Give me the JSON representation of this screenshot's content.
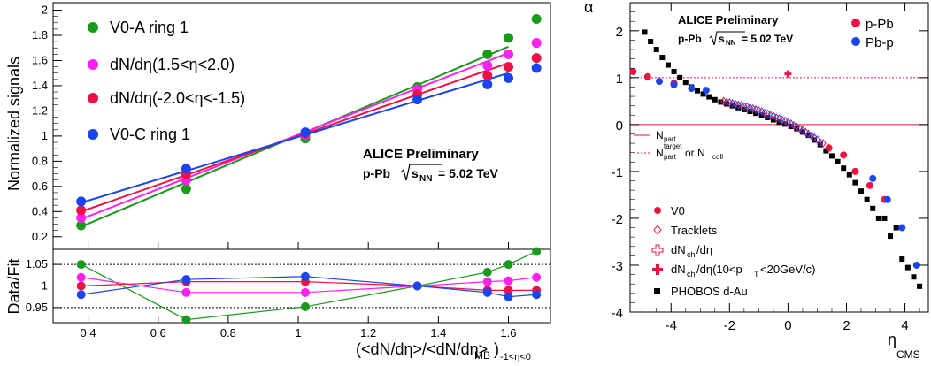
{
  "colors": {
    "green": "#1a9a1a",
    "magenta": "#ff22ee",
    "red": "#ee1144",
    "blue": "#1a44ee",
    "black": "#000000"
  },
  "chart_data": [
    {
      "type": "line",
      "x": [
        0.38,
        0.68,
        1.02,
        1.34,
        1.54,
        1.6,
        1.68
      ],
      "x_fit": [
        0.38,
        1.6
      ],
      "xlim": [
        0.3,
        1.72
      ],
      "xticks": [
        "0.4",
        "0.6",
        "0.8",
        "1",
        "1.2",
        "1.4",
        "1.6"
      ],
      "ylim": [
        0.1,
        2.06
      ],
      "yticks": [
        "0.2",
        "0.4",
        "0.6",
        "0.8",
        "1",
        "1.2",
        "1.4",
        "1.6",
        "1.8",
        "2"
      ],
      "ylabel": "Normalized signals",
      "xlabel_main": "(<dN/dη>/<dN/dη>",
      "xlabel_sub": "MB",
      "xlabel_sub2": ")",
      "xlabel_sub3": "-1<η<0",
      "annotation_title": "ALICE Preliminary",
      "annotation_system_prefix": "p-Pb",
      "annotation_sqrt_s": "s",
      "annotation_sqrt_sub": "NN",
      "annotation_energy": "= 5.02 TeV",
      "series": [
        {
          "name": "V0-A ring 1",
          "color": "green",
          "values": [
            0.29,
            0.58,
            0.98,
            1.39,
            1.65,
            1.78,
            1.93
          ],
          "fit": [
            0.28,
            1.71
          ]
        },
        {
          "name": "dN/dη(1.5<η<2.0)",
          "color": "magenta",
          "values": [
            0.35,
            0.65,
            1.01,
            1.37,
            1.56,
            1.65,
            1.74
          ],
          "fit": [
            0.34,
            1.66
          ]
        },
        {
          "name": "dN/dη(-2.0<η<-1.5)",
          "color": "red",
          "values": [
            0.41,
            0.7,
            1.02,
            1.33,
            1.48,
            1.55,
            1.62
          ],
          "fit": [
            0.4,
            1.58
          ]
        },
        {
          "name": "V0-C ring 1",
          "color": "blue",
          "values": [
            0.48,
            0.74,
            1.03,
            1.29,
            1.41,
            1.46,
            1.54
          ],
          "fit": [
            0.47,
            1.5
          ]
        }
      ]
    },
    {
      "type": "line",
      "x": [
        0.38,
        0.68,
        1.02,
        1.34,
        1.54,
        1.6,
        1.68
      ],
      "xlim": [
        0.3,
        1.72
      ],
      "ylim": [
        0.915,
        1.085
      ],
      "yticks": [
        "0.95",
        "1",
        "1.05"
      ],
      "ylabel": "Data/Fit",
      "reference_lines": [
        0.95,
        1.0,
        1.05
      ],
      "series": [
        {
          "name": "V0-A ring 1",
          "color": "green",
          "values": [
            1.05,
            0.922,
            0.952,
            1.0,
            1.032,
            1.05,
            1.08
          ]
        },
        {
          "name": "dN/dη(1.5<η<2.0)",
          "color": "magenta",
          "values": [
            1.02,
            0.985,
            0.985,
            1.0,
            1.01,
            1.012,
            1.02
          ]
        },
        {
          "name": "dN/dη(-2.0<η<-1.5)",
          "color": "red",
          "values": [
            1.0,
            1.01,
            1.01,
            1.0,
            0.99,
            0.99,
            0.99
          ]
        },
        {
          "name": "V0-C ring 1",
          "color": "blue",
          "values": [
            0.98,
            1.015,
            1.022,
            1.0,
            0.985,
            0.975,
            0.98
          ]
        }
      ]
    },
    {
      "type": "scatter",
      "xlim": [
        -5.4,
        4.8
      ],
      "xticks": [
        "-4",
        "-2",
        "0",
        "2",
        "4"
      ],
      "ylim": [
        -4.0,
        2.6
      ],
      "yticks": [
        "-4",
        "-3",
        "-2",
        "-1",
        "0",
        "1",
        "2"
      ],
      "ylabel": "α",
      "xlabel": "η",
      "xlabel_sub": "CMS",
      "annotation_title": "ALICE Preliminary",
      "annotation_system_prefix": "p-Pb",
      "annotation_sqrt_s": "s",
      "annotation_sqrt_sub": "NN",
      "annotation_energy": "= 5.02 TeV",
      "legend_top": [
        {
          "label": "p-Pb",
          "color": "red"
        },
        {
          "label": "Pb-p",
          "color": "blue"
        }
      ],
      "line_legend": [
        {
          "label_main": "N",
          "label_sub": "part",
          "label_sup": "",
          "label_rest": "",
          "style": "solid"
        },
        {
          "label_main": "N",
          "label_sub": "part",
          "label_sup": "target",
          "label_rest": " or N",
          "label_sub2": "coll",
          "style": "dashed"
        }
      ],
      "marker_legend": [
        {
          "label": "V0",
          "marker": "filled-circle"
        },
        {
          "label": "Tracklets",
          "marker": "open-diamond"
        },
        {
          "label_main": "dN",
          "label_sub": "ch",
          "label_rest": "/dη",
          "marker": "open-cross"
        },
        {
          "label_main": "dN",
          "label_sub": "ch",
          "label_rest": "/dη(10<p",
          "label_sub2": "T",
          "label_rest2": "<20GeV/c)",
          "marker": "filled-cross"
        },
        {
          "label": "PHOBOS d-Au",
          "marker": "filled-square"
        }
      ],
      "reference_lines": [
        {
          "y": 0,
          "style": "solid"
        },
        {
          "y": 1,
          "style": "dashed"
        }
      ],
      "series": [
        {
          "name": "PHOBOS d-Au",
          "marker": "square",
          "color": "black",
          "x": [
            -4.9,
            -4.7,
            -4.5,
            -4.3,
            -4.1,
            -3.9,
            -3.7,
            -3.5,
            -3.3,
            -3.1,
            -2.9,
            -2.7,
            -2.5,
            -2.3,
            -2.1,
            -1.9,
            -1.7,
            -1.5,
            -1.3,
            -1.1,
            -0.9,
            -0.7,
            -0.5,
            -0.3,
            -0.1,
            0.1,
            0.3,
            0.5,
            0.7,
            0.9,
            1.1,
            1.3,
            1.5,
            1.7,
            1.9,
            2.1,
            2.3,
            2.5,
            2.7,
            2.9,
            3.1,
            3.3,
            3.5,
            3.7,
            3.9,
            4.1,
            4.3,
            4.5
          ],
          "y": [
            1.97,
            1.77,
            1.6,
            1.43,
            1.27,
            1.13,
            1.0,
            0.9,
            0.8,
            0.72,
            0.65,
            0.59,
            0.53,
            0.48,
            0.44,
            0.4,
            0.36,
            0.32,
            0.28,
            0.24,
            0.2,
            0.15,
            0.1,
            0.05,
            0.01,
            -0.04,
            -0.09,
            -0.16,
            -0.23,
            -0.33,
            -0.43,
            -0.56,
            -0.67,
            -0.79,
            -0.93,
            -1.07,
            -1.24,
            -1.42,
            -1.6,
            -1.79,
            -2.0,
            -2.0,
            -2.38,
            -2.2,
            -2.87,
            -3.05,
            -3.25,
            -3.45
          ]
        },
        {
          "name": "p-Pb V0",
          "marker": "circle",
          "color": "red",
          "x": [
            -5.3,
            -4.8,
            -3.9,
            1.4,
            1.9,
            2.3,
            2.8,
            3.3
          ],
          "y": [
            1.13,
            1.02,
            0.88,
            -0.5,
            -0.65,
            -1.0,
            -1.3,
            -1.6
          ]
        },
        {
          "name": "Pb-p V0",
          "marker": "circle",
          "color": "blue",
          "x": [
            -4.4,
            -3.9,
            -3.3,
            -2.8,
            2.9,
            3.4,
            3.9,
            4.4
          ],
          "y": [
            0.92,
            0.85,
            0.77,
            0.73,
            -1.15,
            -1.6,
            -2.2,
            -3.0
          ]
        },
        {
          "name": "p-Pb tracklets",
          "marker": "diamond",
          "color": "red",
          "x": [
            -2.2,
            -2.0,
            -1.8,
            -1.6,
            -1.4,
            -1.2,
            -1.0,
            -0.8,
            -0.6,
            -0.4,
            -0.2,
            0.0,
            0.2,
            0.4,
            0.6,
            0.8,
            1.0,
            1.2,
            1.4
          ],
          "y": [
            0.5,
            0.47,
            0.44,
            0.41,
            0.38,
            0.34,
            0.3,
            0.25,
            0.2,
            0.15,
            0.1,
            0.04,
            -0.02,
            -0.09,
            -0.16,
            -0.24,
            -0.32,
            -0.4,
            -0.5
          ]
        },
        {
          "name": "Pb-p tracklets",
          "marker": "diamond",
          "color": "blue",
          "x": [
            -2.1,
            -1.9,
            -1.7,
            -1.5,
            -1.3,
            -1.1,
            -0.9,
            -0.7,
            -0.5,
            -0.3,
            -0.1,
            0.1,
            0.3,
            0.5,
            0.7,
            0.9,
            1.1
          ],
          "y": [
            0.48,
            0.45,
            0.42,
            0.39,
            0.36,
            0.32,
            0.28,
            0.23,
            0.18,
            0.13,
            0.08,
            0.02,
            -0.05,
            -0.12,
            -0.2,
            -0.28,
            -0.38
          ]
        },
        {
          "name": "p-Pb dNch/dη (10<pT<20GeV/c)",
          "marker": "filled-cross",
          "color": "red",
          "x": [
            0.0
          ],
          "y": [
            1.08
          ]
        }
      ]
    }
  ]
}
